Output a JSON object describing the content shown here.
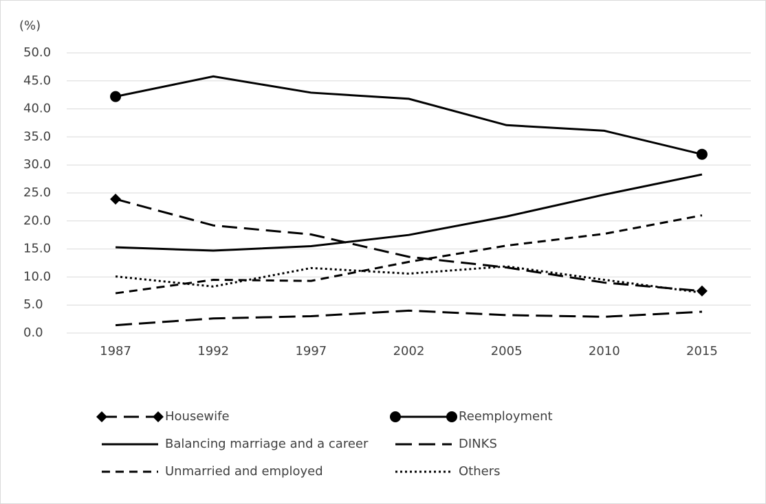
{
  "chart_data": {
    "type": "line",
    "y_label": "(%)",
    "categories": [
      "1987",
      "1992",
      "1997",
      "2002",
      "2005",
      "2010",
      "2015"
    ],
    "series": [
      {
        "name": "Housewife",
        "color": "#000000",
        "dash": "22,10",
        "marker": "diamond",
        "values": [
          23.9,
          19.2,
          17.6,
          13.6,
          11.7,
          9.0,
          7.5
        ]
      },
      {
        "name": "Reemployment",
        "color": "#000000",
        "dash": "none",
        "marker": "circle",
        "values": [
          42.2,
          45.8,
          42.9,
          41.8,
          37.1,
          36.1,
          31.9
        ]
      },
      {
        "name": "Balancing marriage and a career",
        "color": "#000000",
        "dash": "none",
        "marker": "none",
        "values": [
          15.3,
          14.7,
          15.5,
          17.5,
          20.8,
          24.7,
          28.3
        ]
      },
      {
        "name": "DINKS",
        "color": "#000000",
        "dash": "24,10",
        "marker": "none",
        "values": [
          1.4,
          2.6,
          3.0,
          4.0,
          3.2,
          2.9,
          3.8
        ]
      },
      {
        "name": "Unmarried and employed",
        "color": "#000000",
        "dash": "12,8",
        "marker": "none",
        "values": [
          7.1,
          9.5,
          9.3,
          12.7,
          15.6,
          17.7,
          21.0
        ]
      },
      {
        "name": "Others",
        "color": "#000000",
        "dash": "3,4",
        "marker": "none",
        "values": [
          10.1,
          8.3,
          11.6,
          10.6,
          11.9,
          9.5,
          7.2
        ]
      }
    ],
    "ylim": [
      0,
      50
    ],
    "yticks": [
      {
        "value": 0,
        "label": "0.0"
      },
      {
        "value": 5,
        "label": "5.0"
      },
      {
        "value": 10,
        "label": "10.0"
      },
      {
        "value": 15,
        "label": "15.0"
      },
      {
        "value": 20,
        "label": "20.0"
      },
      {
        "value": 25,
        "label": "25.0"
      },
      {
        "value": 30,
        "label": "30.0"
      },
      {
        "value": 35,
        "label": "35.0"
      },
      {
        "value": 40,
        "label": "40.0"
      },
      {
        "value": 45,
        "label": "45.0"
      },
      {
        "value": 50,
        "label": "50.0"
      }
    ],
    "grid": true
  }
}
